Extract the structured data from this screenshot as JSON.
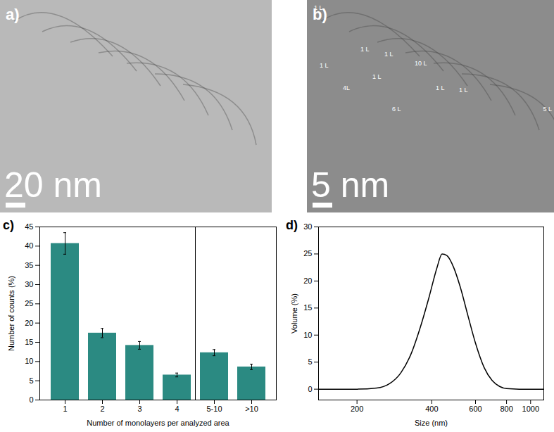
{
  "images": [
    {
      "label": "a)",
      "scale_bar": "20 nm"
    },
    {
      "label": "b)",
      "scale_bar": "5 nm",
      "annotations": [
        "1 L",
        "1 L",
        "1 L",
        "1 L",
        "10 L",
        "1 L",
        "4L",
        "1 L",
        "1 L",
        "6 L",
        "5 L"
      ]
    }
  ],
  "chart_data": [
    {
      "type": "bar",
      "title": "c)",
      "x_label": "Number of monolayers per analyzed area",
      "y_label": "Number of counts (%)",
      "categories": [
        "1",
        "2",
        "3",
        "4",
        "5-10",
        ">10"
      ],
      "values": [
        40.7,
        17.4,
        14.2,
        6.5,
        12.3,
        8.6
      ],
      "errors": [
        2.8,
        1.2,
        1.0,
        0.5,
        0.8,
        0.7
      ],
      "color": "#2b8a82",
      "ylim": [
        0,
        45
      ],
      "yticks": [
        0,
        5,
        10,
        15,
        20,
        25,
        30,
        35,
        40,
        45
      ],
      "grid": false
    },
    {
      "type": "line",
      "title": "d)",
      "x_label": "Size (nm)",
      "y_label": "Volume (%)",
      "x": [
        140,
        200,
        240,
        270,
        300,
        330,
        360,
        390,
        420,
        440,
        460,
        490,
        520,
        560,
        600,
        650,
        700,
        750,
        800,
        900,
        1130
      ],
      "values": [
        0,
        0,
        0.2,
        1,
        3,
        6.5,
        11.5,
        17,
        22.5,
        25,
        24.7,
        22.5,
        19,
        13.5,
        8.5,
        4,
        1.6,
        0.5,
        0.1,
        0,
        0
      ],
      "color": "#000000",
      "log": "x",
      "xlim": [
        140,
        1130
      ],
      "xticks": [
        200,
        400,
        600,
        800,
        1000
      ],
      "ylim": [
        -2,
        30
      ],
      "yticks": [
        0,
        5,
        10,
        15,
        20,
        25,
        30
      ],
      "grid": false
    }
  ]
}
